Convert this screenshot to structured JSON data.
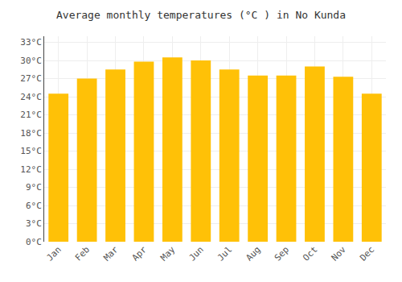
{
  "chart_data": {
    "type": "bar",
    "title": "Average monthly temperatures (°C ) in No Kunda",
    "categories": [
      "Jan",
      "Feb",
      "Mar",
      "Apr",
      "May",
      "Jun",
      "Jul",
      "Aug",
      "Sep",
      "Oct",
      "Nov",
      "Dec"
    ],
    "values": [
      24.5,
      27.0,
      28.5,
      29.8,
      30.5,
      30.0,
      28.5,
      27.5,
      27.5,
      29.0,
      27.3,
      24.5
    ],
    "color": "#FFC107",
    "ylim": [
      0,
      34
    ],
    "yticks": [
      {
        "value": 0,
        "label": "0°C"
      },
      {
        "value": 3,
        "label": "3°C"
      },
      {
        "value": 6,
        "label": "6°C"
      },
      {
        "value": 9,
        "label": "9°C"
      },
      {
        "value": 12,
        "label": "12°C"
      },
      {
        "value": 15,
        "label": "15°C"
      },
      {
        "value": 18,
        "label": "18°C"
      },
      {
        "value": 21,
        "label": "21°C"
      },
      {
        "value": 24,
        "label": "24°C"
      },
      {
        "value": 27,
        "label": "27°C"
      },
      {
        "value": 30,
        "label": "30°C"
      },
      {
        "value": 33,
        "label": "33°C"
      }
    ],
    "grid": true
  }
}
